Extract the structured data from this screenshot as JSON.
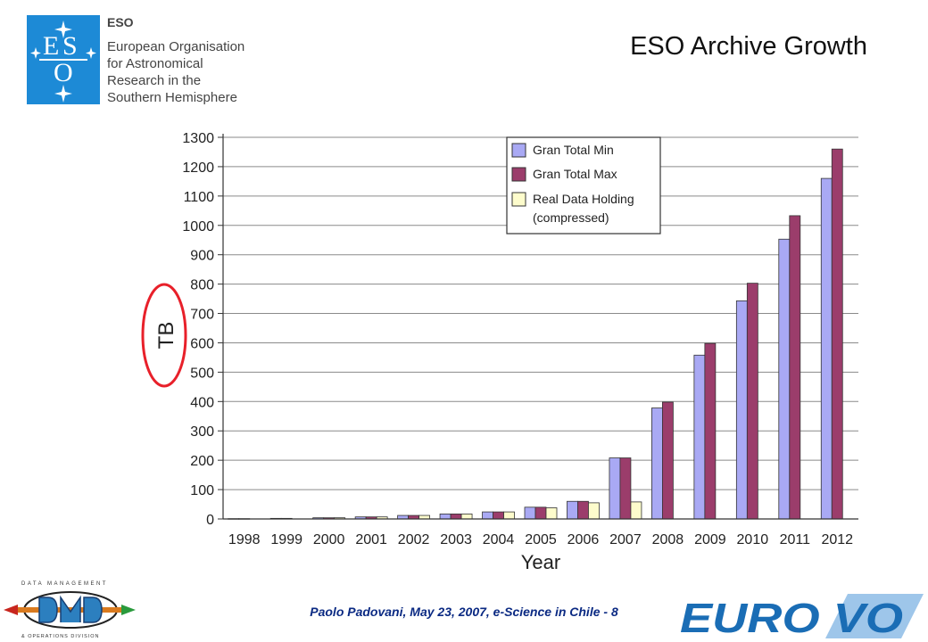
{
  "header": {
    "eso_short": "ESO",
    "eso_org_lines": [
      "European Organisation",
      "for Astronomical",
      "Research in the",
      "Southern Hemisphere"
    ],
    "title": "ESO Archive Growth"
  },
  "footer": {
    "text": "Paolo Padovani, May 23, 2007, e-Science in Chile - 8",
    "dmd_logo_lines": [
      "DATA MANAGEMENT",
      "& OPERATIONS DIVISION"
    ],
    "eurovo_logo": "EURO-VO"
  },
  "colors": {
    "min": "#a9a9f4",
    "max": "#9b3d6b",
    "real": "#fdfccc",
    "ellipse": "#e8202a",
    "eso_blue": "#1d8ad6",
    "footer_text": "#0b2a83",
    "eurovo_blue": "#1a6db5"
  },
  "chart_data": {
    "type": "bar",
    "categories": [
      "1998",
      "1999",
      "2000",
      "2001",
      "2002",
      "2003",
      "2004",
      "2005",
      "2006",
      "2007",
      "2008",
      "2009",
      "2010",
      "2011",
      "2012"
    ],
    "series": [
      {
        "name": "Gran Total Min",
        "values": [
          1,
          2,
          4,
          7,
          12,
          17,
          24,
          40,
          60,
          208,
          378,
          558,
          743,
          953,
          1160
        ]
      },
      {
        "name": "Gran Total Max",
        "values": [
          1,
          2,
          4,
          7,
          12,
          17,
          24,
          40,
          60,
          208,
          398,
          598,
          803,
          1033,
          1260
        ]
      },
      {
        "name": "Real Data Holding (compressed)",
        "values": [
          null,
          null,
          4,
          7,
          12,
          17,
          24,
          38,
          55,
          58,
          null,
          null,
          null,
          null,
          null
        ]
      }
    ],
    "legend_labels": [
      "Gran Total Min",
      "Gran Total Max",
      "Real Data Holding",
      "(compressed)"
    ],
    "xlabel": "Year",
    "ylabel": "TB",
    "ylim": [
      0,
      1300
    ],
    "yticks": [
      0,
      100,
      200,
      300,
      400,
      500,
      600,
      700,
      800,
      900,
      1000,
      1100,
      1200,
      1300
    ],
    "grid": true,
    "legend_position": "top-center"
  }
}
